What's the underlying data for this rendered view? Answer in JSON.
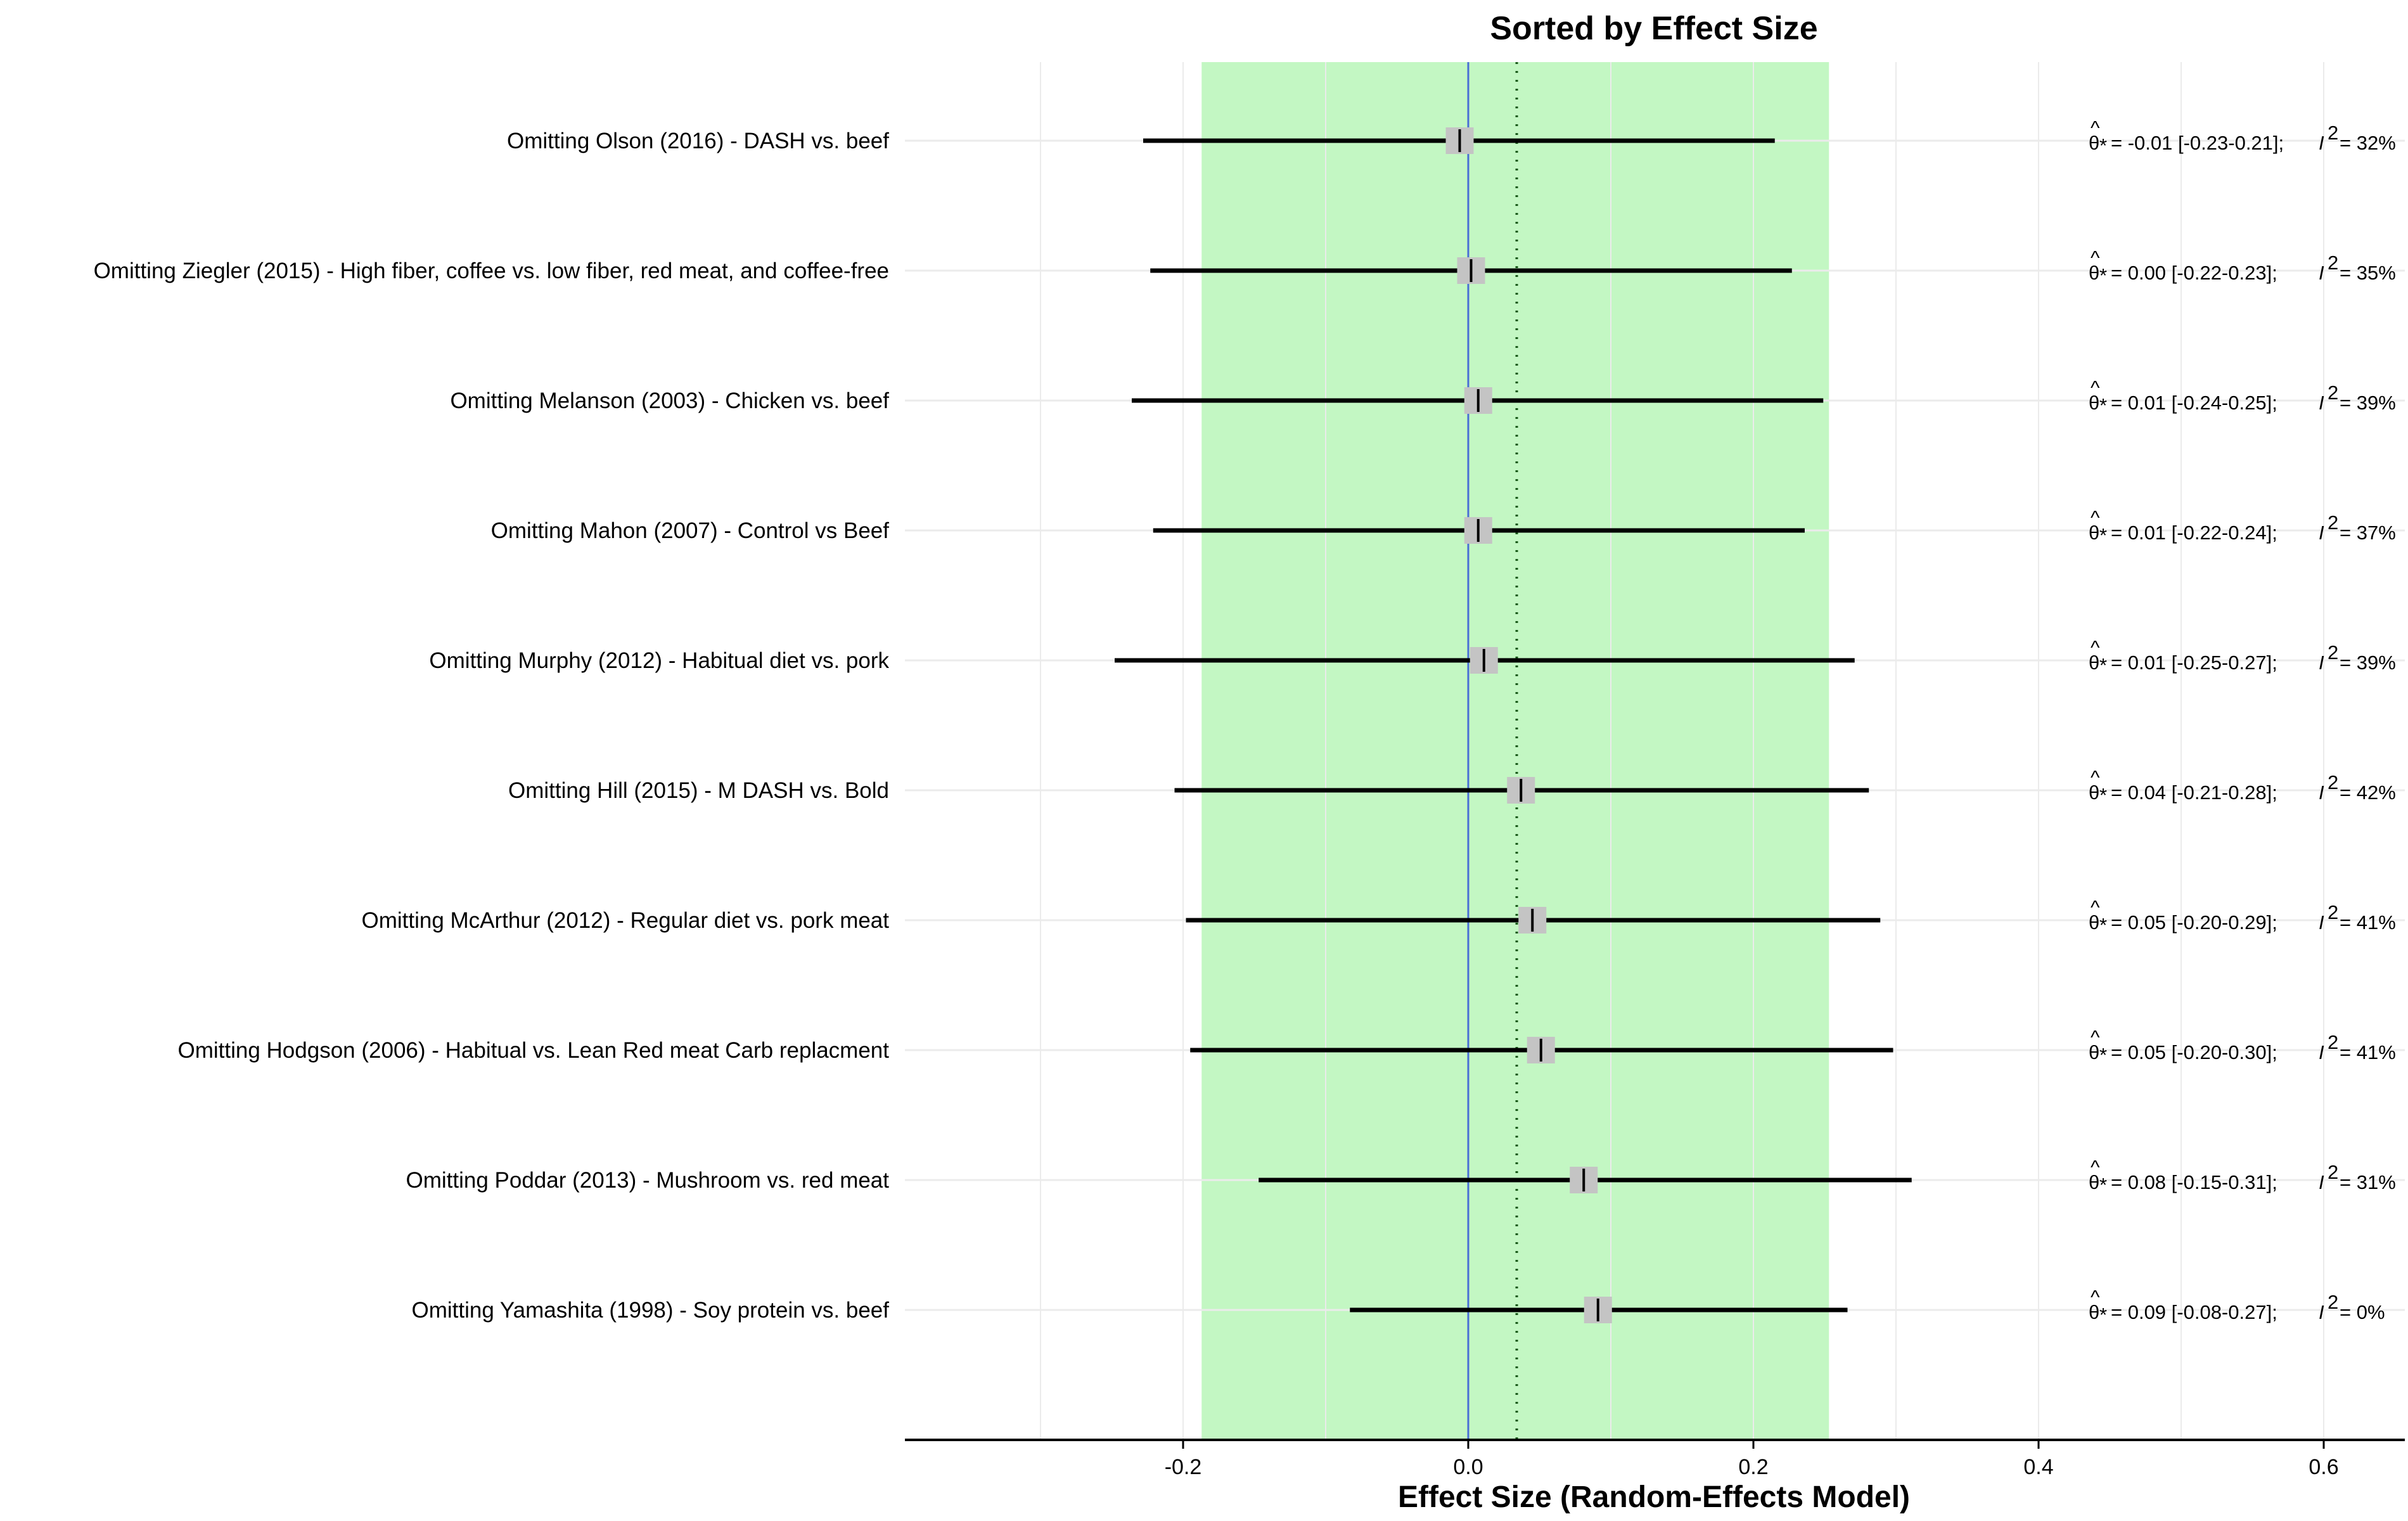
{
  "chart_data": {
    "type": "forest",
    "title": "Sorted by Effect Size",
    "xlabel": "Effect Size (Random-Effects Model)",
    "xlim": [
      -0.4,
      0.65
    ],
    "x_ticks": [
      -0.2,
      0.0,
      0.2,
      0.4,
      0.6
    ],
    "x_tick_labels": [
      "-0.2",
      "0.0",
      "0.2",
      "0.4",
      "0.6"
    ],
    "grid": true,
    "reference_line": 0.0,
    "pooled_estimate": 0.034,
    "shaded_interval": [
      -0.187,
      0.253
    ],
    "colors": {
      "shade": "#c3f7c3",
      "reference_line": "#4a6fd6",
      "marker": "#c4c4c4",
      "ci_line": "#000000",
      "grid": "#ebebeb"
    },
    "studies": [
      {
        "label": "Omitting Olson (2016) - DASH vs. beef",
        "est": -0.006,
        "lo": -0.228,
        "hi": 0.215,
        "annotation": "= -0.01 [-0.23-0.21];",
        "i2_value": "= 32%"
      },
      {
        "label": "Omitting Ziegler (2015) - High fiber, coffee vs. low fiber, red meat, and coffee-free",
        "est": 0.002,
        "lo": -0.223,
        "hi": 0.227,
        "annotation": "=  0.00 [-0.22-0.23];",
        "i2_value": "= 35%"
      },
      {
        "label": "Omitting Melanson (2003) - Chicken vs. beef",
        "est": 0.007,
        "lo": -0.236,
        "hi": 0.249,
        "annotation": "=  0.01 [-0.24-0.25];",
        "i2_value": "= 39%"
      },
      {
        "label": "Omitting Mahon (2007) - Control vs Beef",
        "est": 0.007,
        "lo": -0.221,
        "hi": 0.236,
        "annotation": "=  0.01 [-0.22-0.24];",
        "i2_value": "= 37%"
      },
      {
        "label": "Omitting Murphy (2012) - Habitual diet vs. pork",
        "est": 0.011,
        "lo": -0.248,
        "hi": 0.271,
        "annotation": "=  0.01 [-0.25-0.27];",
        "i2_value": "= 39%"
      },
      {
        "label": "Omitting Hill (2015) - M DASH vs. Bold",
        "est": 0.037,
        "lo": -0.206,
        "hi": 0.281,
        "annotation": "=  0.04 [-0.21-0.28];",
        "i2_value": "= 42%"
      },
      {
        "label": "Omitting McArthur (2012) - Regular diet vs. pork meat",
        "est": 0.045,
        "lo": -0.198,
        "hi": 0.289,
        "annotation": "=  0.05 [-0.20-0.29];",
        "i2_value": "= 41%"
      },
      {
        "label": "Omitting Hodgson (2006) - Habitual vs. Lean Red meat Carb replacment",
        "est": 0.051,
        "lo": -0.195,
        "hi": 0.298,
        "annotation": "=  0.05 [-0.20-0.30];",
        "i2_value": "= 41%"
      },
      {
        "label": "Omitting Poddar (2013) - Mushroom vs. red meat",
        "est": 0.081,
        "lo": -0.147,
        "hi": 0.311,
        "annotation": "=  0.08 [-0.15-0.31];",
        "i2_value": "= 31%"
      },
      {
        "label": "Omitting Yamashita (1998) - Soy protein vs. beef",
        "est": 0.091,
        "lo": -0.083,
        "hi": 0.266,
        "annotation": "=  0.09 [-0.08-0.27];",
        "i2_value": "=  0%"
      }
    ]
  }
}
